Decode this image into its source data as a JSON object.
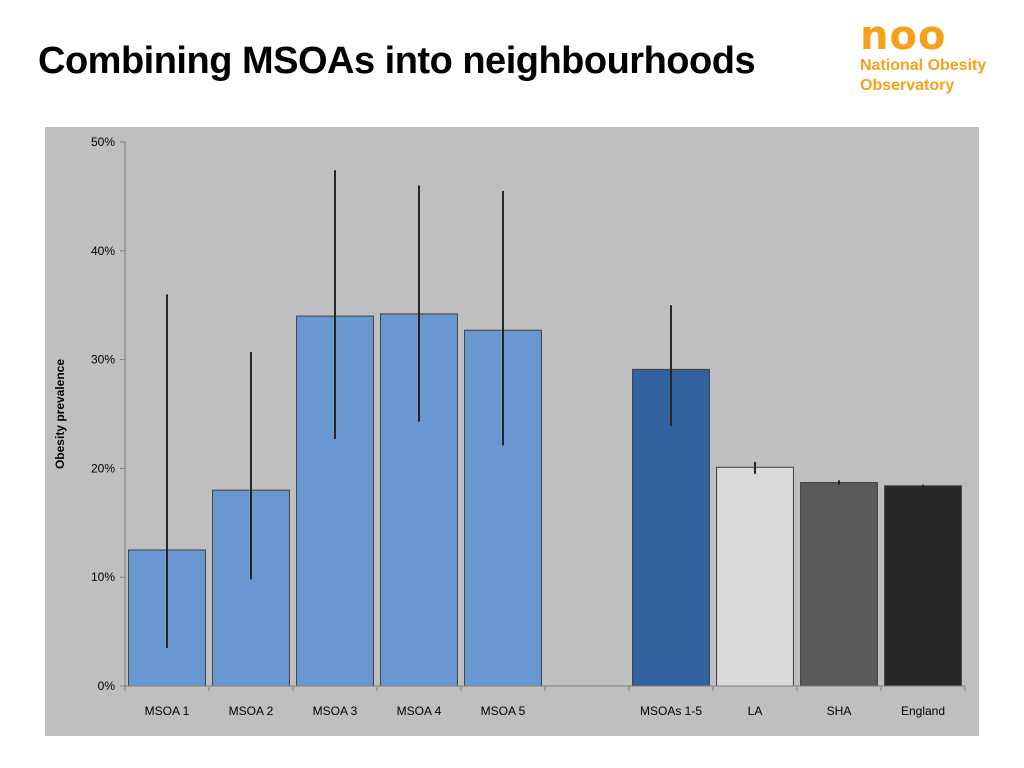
{
  "slide": {
    "title": "Combining MSOAs into neighbourhoods"
  },
  "logo": {
    "mark": "noo",
    "line1": "National Obesity",
    "line2": "Observatory",
    "color": "#f7a11a"
  },
  "chart_data": {
    "type": "bar",
    "title": "",
    "xlabel": "",
    "ylabel": "Obesity prevalence",
    "ylim": [
      0,
      50
    ],
    "yticks": [
      0,
      10,
      20,
      30,
      40,
      50
    ],
    "ytick_labels": [
      "0%",
      "10%",
      "20%",
      "30%",
      "40%",
      "50%"
    ],
    "grid": false,
    "legend": "none",
    "categories": [
      "MSOA 1",
      "MSOA 2",
      "MSOA 3",
      "MSOA 4",
      "MSOA 5",
      "",
      "MSOAs 1-5",
      "LA",
      "SHA",
      "England"
    ],
    "values": [
      12.5,
      18.0,
      34.0,
      34.2,
      32.7,
      null,
      29.1,
      20.1,
      18.7,
      18.4
    ],
    "error_low": [
      3.5,
      9.8,
      22.7,
      24.3,
      22.1,
      null,
      23.9,
      19.5,
      18.5,
      18.3
    ],
    "error_high": [
      36.0,
      30.7,
      47.4,
      46.0,
      45.5,
      null,
      35.0,
      20.6,
      18.9,
      18.5
    ],
    "colors": [
      "#6897d1",
      "#6897d1",
      "#6897d1",
      "#6897d1",
      "#6897d1",
      null,
      "#31619e",
      "#d9d9d9",
      "#595959",
      "#262626"
    ],
    "background": "#bfbfbf"
  }
}
